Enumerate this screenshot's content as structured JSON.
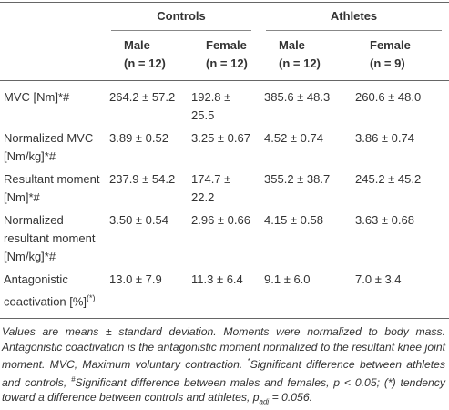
{
  "table": {
    "groups": [
      "Controls",
      "Athletes"
    ],
    "subheaders": [
      {
        "sex": "Male",
        "n": "(n = 12)"
      },
      {
        "sex": "Female",
        "n": "(n = 12)"
      },
      {
        "sex": "Male",
        "n": "(n = 12)"
      },
      {
        "sex": "Female",
        "n": "(n = 9)"
      }
    ],
    "rows": [
      {
        "label": "MVC [Nm]*#",
        "cells": [
          "264.2 ± 57.2",
          "192.8 ± 25.5",
          "385.6 ± 48.3",
          "260.6 ± 48.0"
        ]
      },
      {
        "label": "Normalized MVC [Nm/kg]*#",
        "cells": [
          "3.89 ± 0.52",
          "3.25 ± 0.67",
          "4.52 ± 0.74",
          "3.86 ± 0.74"
        ]
      },
      {
        "label": "Resultant moment [Nm]*#",
        "cells": [
          "237.9 ± 54.2",
          "174.7 ± 22.2",
          "355.2 ± 38.7",
          "245.2 ± 45.2"
        ]
      },
      {
        "label": "Normalized resultant moment [Nm/kg]*#",
        "cells": [
          "3.50 ± 0.54",
          "2.96 ± 0.66",
          "4.15 ± 0.58",
          "3.63 ± 0.68"
        ]
      },
      {
        "label": "Antagonistic coactivation [%]",
        "label_sup": "(*)",
        "cells": [
          "13.0 ± 7.9",
          "11.3 ± 6.4",
          "9.1 ± 6.0",
          "7.0 ± 3.4"
        ]
      }
    ]
  },
  "footnote": [
    {
      "text": "Values are means ± standard deviation. Moments were normalized to body mass. Antagonistic coactivation is the antagonistic moment normalized to the resultant knee joint moment. MVC, Maximum voluntary contraction. "
    },
    {
      "sup": "*"
    },
    {
      "text": "Significant difference between athletes and controls, "
    },
    {
      "sup": "#"
    },
    {
      "text": "Significant difference between males and females, p < 0.05; (*) tendency toward a difference between controls and athletes, p"
    },
    {
      "sub": "adj"
    },
    {
      "text": " = 0.056."
    }
  ]
}
